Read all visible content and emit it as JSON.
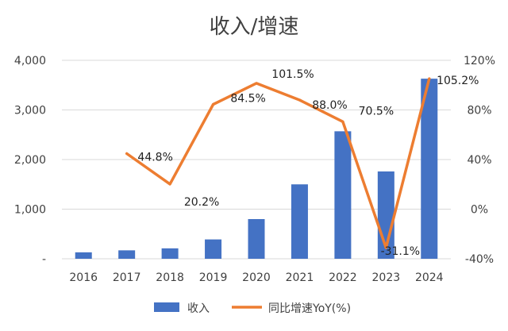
{
  "chart_data": {
    "type": "bar",
    "title": "收入/增速",
    "categories": [
      "2016",
      "2017",
      "2018",
      "2019",
      "2020",
      "2021",
      "2022",
      "2023",
      "2024"
    ],
    "y_left": {
      "ticks": [
        "-",
        "1,000",
        "2,000",
        "3,000",
        "4,000"
      ],
      "ylim": [
        0,
        4000
      ]
    },
    "y_right": {
      "ticks": [
        "-40%",
        "0%",
        "40%",
        "80%",
        "120%"
      ],
      "ylim": [
        -40,
        120
      ]
    },
    "series": [
      {
        "name": "收入",
        "type": "bar",
        "axis": "left",
        "values": [
          130,
          170,
          210,
          390,
          800,
          1500,
          2570,
          1760,
          3630
        ]
      },
      {
        "name": "同比增速YoY(%)",
        "type": "line",
        "axis": "right",
        "values": [
          null,
          44.8,
          20.2,
          84.5,
          101.5,
          88.0,
          70.5,
          -31.1,
          105.2
        ],
        "labels": [
          null,
          "44.8%",
          "20.2%",
          "84.5%",
          "101.5%",
          "88.0%",
          "70.5%",
          "-31.1%",
          "105.2%"
        ]
      }
    ],
    "legend_position": "bottom",
    "grid": true,
    "colors": {
      "bar": "#4472C4",
      "line": "#ED7D31",
      "grid": "#D9D9D9",
      "text": "#404040"
    }
  }
}
